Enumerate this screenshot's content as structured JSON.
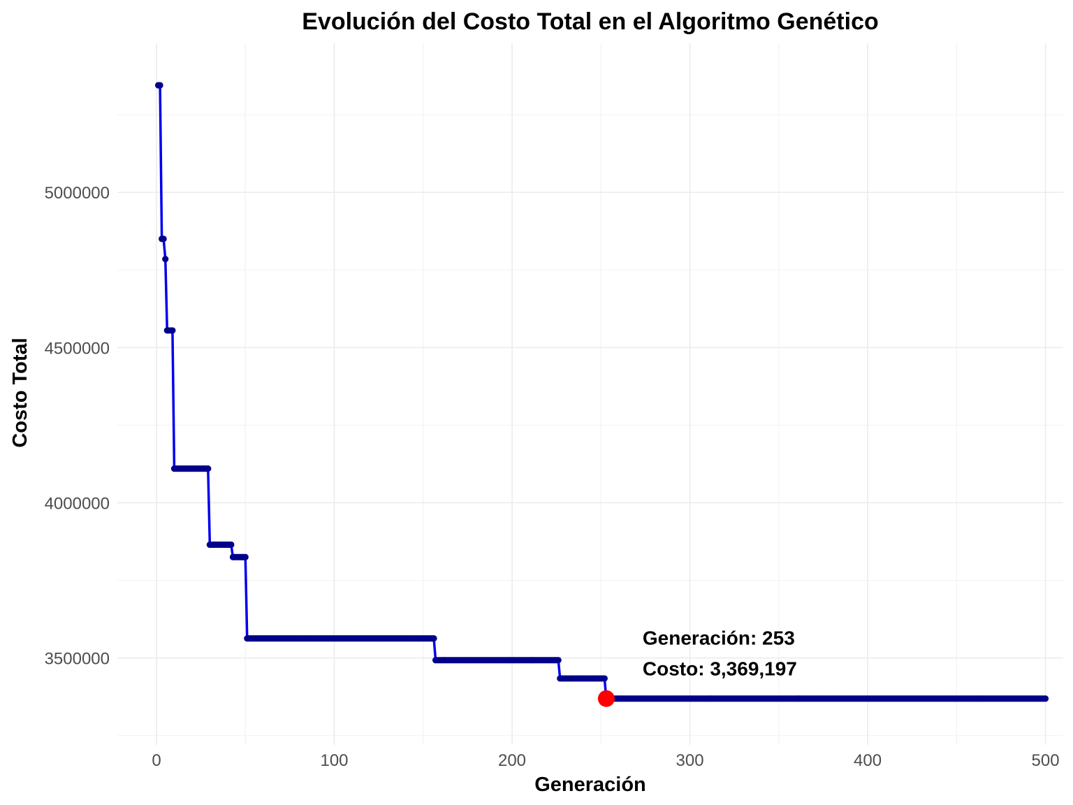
{
  "chart_data": {
    "type": "line",
    "title": "Evolución del Costo Total en el Algoritmo Genético",
    "xlabel": "Generación",
    "ylabel": "Costo Total",
    "xlim": [
      -22,
      510
    ],
    "ylim": [
      3220000,
      5480000
    ],
    "x_ticks": [
      0,
      100,
      200,
      300,
      400,
      500
    ],
    "x_tick_labels": [
      "0",
      "100",
      "200",
      "300",
      "400",
      "500"
    ],
    "y_ticks": [
      3500000,
      4000000,
      4500000,
      5000000
    ],
    "y_tick_labels": [
      "3500000",
      "4000000",
      "4500000",
      "5000000"
    ],
    "grid": true,
    "series": [
      {
        "line_color": "#0000ee",
        "point_color": "#00008b",
        "steps": [
          {
            "from": 1,
            "to": 2,
            "y": 5345000
          },
          {
            "from": 3,
            "to": 4,
            "y": 4850000
          },
          {
            "from": 5,
            "to": 5,
            "y": 4785000
          },
          {
            "from": 6,
            "to": 9,
            "y": 4555000
          },
          {
            "from": 10,
            "to": 29,
            "y": 4110000
          },
          {
            "from": 30,
            "to": 42,
            "y": 3865000
          },
          {
            "from": 43,
            "to": 50,
            "y": 3825000
          },
          {
            "from": 51,
            "to": 156,
            "y": 3563000
          },
          {
            "from": 157,
            "to": 226,
            "y": 3493000
          },
          {
            "from": 227,
            "to": 252,
            "y": 3434000
          },
          {
            "from": 253,
            "to": 500,
            "y": 3369197
          }
        ]
      }
    ],
    "highlight": {
      "x": 253,
      "y": 3369197,
      "color": "#ff0000",
      "label_line1": "Generación: 253",
      "label_line2": "Costo: 3,369,197"
    }
  }
}
